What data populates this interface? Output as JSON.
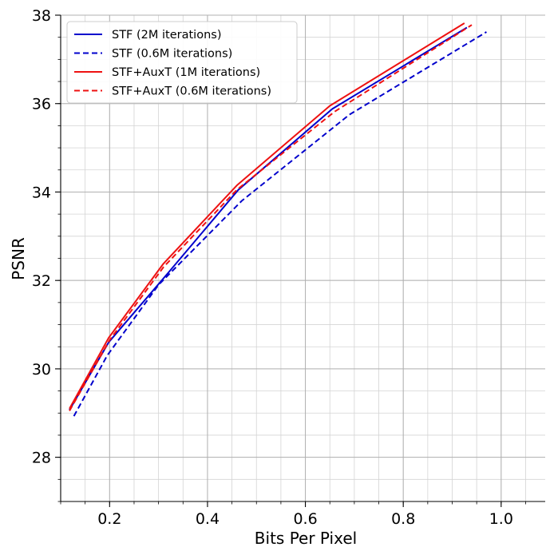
{
  "chart_data": {
    "type": "line",
    "xlabel": "Bits Per Pixel",
    "ylabel": "PSNR",
    "xlim": [
      0.1,
      1.09
    ],
    "ylim": [
      27.0,
      38.0
    ],
    "x_major_ticks": [
      0.2,
      0.4,
      0.6,
      0.8,
      1.0
    ],
    "x_tick_labels": [
      "0.2",
      "0.4",
      "0.6",
      "0.8",
      "1.0"
    ],
    "y_major_ticks": [
      28,
      30,
      32,
      34,
      36,
      38
    ],
    "y_tick_labels": [
      "28",
      "30",
      "32",
      "34",
      "36",
      "38"
    ],
    "minor_step_x": 0.05,
    "minor_step_y": 0.5,
    "grid": true,
    "legend_position": "upper-left",
    "series": [
      {
        "name": "STF (2M iterations)",
        "color": "#0000cc",
        "dash": "solid",
        "x": [
          0.118,
          0.198,
          0.318,
          0.463,
          0.655,
          0.93
        ],
        "y": [
          29.07,
          30.6,
          32.15,
          34.05,
          35.88,
          37.72
        ]
      },
      {
        "name": "STF (0.6M iterations)",
        "color": "#0000cc",
        "dash": "dashed",
        "x": [
          0.127,
          0.195,
          0.3,
          0.47,
          0.69,
          0.97
        ],
        "y": [
          28.93,
          30.3,
          31.9,
          33.8,
          35.75,
          37.62
        ]
      },
      {
        "name": "STF+AuxT (1M iterations)",
        "color": "#ee1111",
        "dash": "solid",
        "x": [
          0.118,
          0.198,
          0.31,
          0.46,
          0.65,
          0.925
        ],
        "y": [
          29.1,
          30.7,
          32.38,
          34.15,
          35.95,
          37.82
        ]
      },
      {
        "name": "STF+AuxT (0.6M iterations)",
        "color": "#ee1111",
        "dash": "dashed",
        "x": [
          0.118,
          0.2,
          0.31,
          0.46,
          0.66,
          0.94
        ],
        "y": [
          29.05,
          30.65,
          32.3,
          34.05,
          35.82,
          37.78
        ]
      }
    ]
  }
}
